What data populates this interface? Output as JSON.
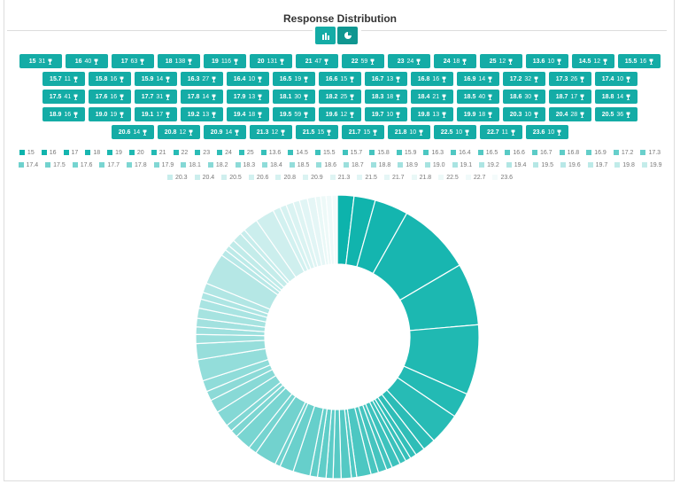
{
  "header": {
    "title": "Response Distribution"
  },
  "chart_data": {
    "type": "donut",
    "categories": [
      "15",
      "16",
      "17",
      "18",
      "19",
      "20",
      "21",
      "22",
      "23",
      "24",
      "25",
      "13.6",
      "14.5",
      "15.5",
      "15.7",
      "15.8",
      "15.9",
      "16.3",
      "16.4",
      "16.5",
      "16.6",
      "16.7",
      "16.8",
      "16.9",
      "17.2",
      "17.3",
      "17.4",
      "17.5",
      "17.6",
      "17.7",
      "17.8",
      "17.9",
      "18.1",
      "18.2",
      "18.3",
      "18.4",
      "18.5",
      "18.6",
      "18.7",
      "18.8",
      "18.9",
      "19.0",
      "19.1",
      "19.2",
      "19.4",
      "19.5",
      "19.6",
      "19.7",
      "19.8",
      "19.9",
      "20.3",
      "20.4",
      "20.5",
      "20.6",
      "20.8",
      "20.9",
      "21.3",
      "21.5",
      "21.7",
      "21.8",
      "22.5",
      "22.7",
      "23.6"
    ],
    "values": [
      31,
      40,
      63,
      138,
      116,
      131,
      47,
      59,
      24,
      18,
      12,
      10,
      12,
      16,
      11,
      16,
      14,
      27,
      10,
      19,
      15,
      13,
      16,
      14,
      32,
      26,
      10,
      41,
      16,
      31,
      14,
      13,
      30,
      25,
      18,
      21,
      40,
      30,
      17,
      14,
      16,
      19,
      17,
      13,
      18,
      59,
      12,
      10,
      13,
      18,
      10,
      28,
      36,
      14,
      12,
      14,
      12,
      15,
      15,
      10,
      10,
      11,
      10
    ],
    "color_range": [
      "#0db3ac",
      "#f4fbfb"
    ]
  }
}
